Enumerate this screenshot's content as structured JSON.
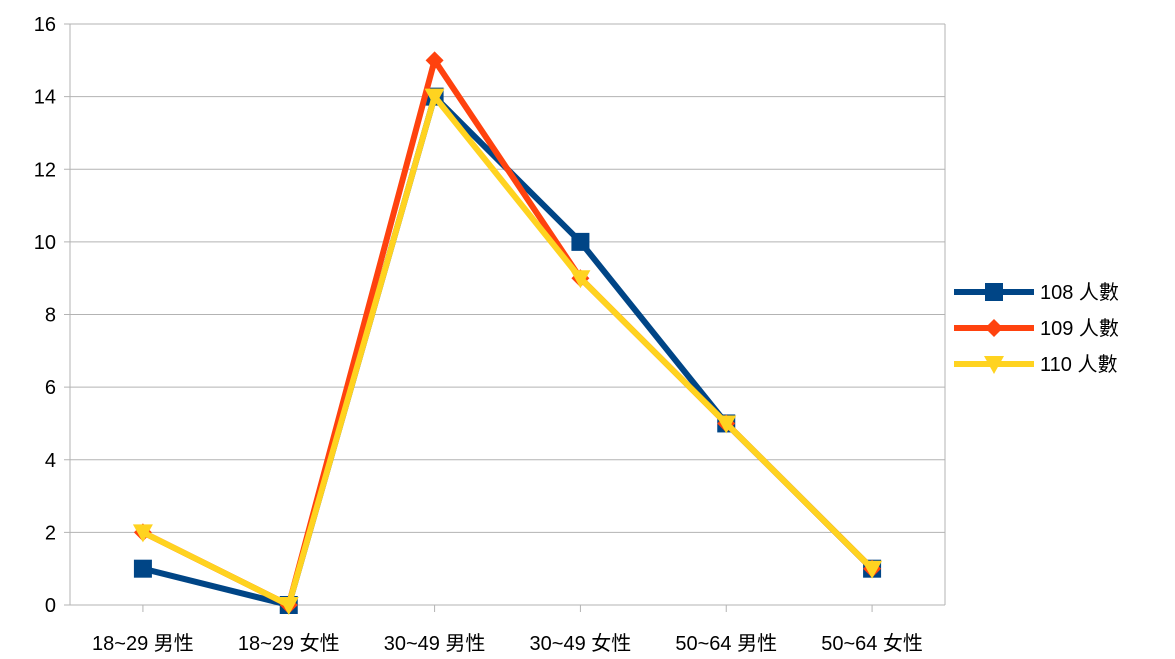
{
  "chart_data": {
    "type": "line",
    "title": "",
    "xlabel": "",
    "ylabel": "",
    "categories": [
      "18~29 男性",
      "18~29 女性",
      "30~49 男性",
      "30~49 女性",
      "50~64 男性",
      "50~64 女性"
    ],
    "ylim": [
      0,
      16
    ],
    "yticks": [
      0,
      2,
      4,
      6,
      8,
      10,
      12,
      14,
      16
    ],
    "grid": true,
    "legend_position": "right",
    "series": [
      {
        "name": "108 人數",
        "values": [
          1,
          0,
          14,
          10,
          5,
          1
        ],
        "color": "#004586",
        "marker": "square"
      },
      {
        "name": "109 人數",
        "values": [
          2,
          0,
          15,
          9,
          5,
          1
        ],
        "color": "#ff420e",
        "marker": "diamond"
      },
      {
        "name": "110 人數",
        "values": [
          2,
          0,
          14,
          9,
          5,
          1
        ],
        "color": "#ffd320",
        "marker": "triangle-down"
      }
    ]
  }
}
